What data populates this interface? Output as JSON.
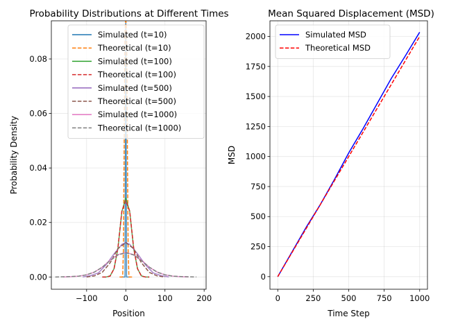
{
  "chart_data": [
    {
      "type": "line",
      "title": "Probability Distributions at Different Times",
      "xlabel": "Position",
      "ylabel": "Probability Density",
      "xlim": [
        -190,
        205
      ],
      "ylim": [
        -0.0045,
        0.094
      ],
      "xticks": [
        -100,
        0,
        100,
        200
      ],
      "xtick_labels": [
        "−100",
        "0",
        "100",
        "200"
      ],
      "yticks": [
        0.0,
        0.02,
        0.04,
        0.06,
        0.08
      ],
      "ytick_labels": [
        "0.00",
        "0.02",
        "0.04",
        "0.06",
        "0.08"
      ],
      "grid": true,
      "legend": "top-right",
      "series": [
        {
          "name": "Simulated (t=10)",
          "color": "#1f77b4",
          "style": "solid",
          "x": [
            -12,
            -8,
            -6,
            -4,
            -2,
            0,
            2,
            4,
            6,
            8,
            12
          ],
          "y": [
            0.0,
            0.0,
            0.0,
            0.0,
            0.0,
            0.095,
            0.0,
            0.0,
            0.0,
            0.0,
            0.0
          ]
        },
        {
          "name": "Theoretical (t=10)",
          "color": "#ff7f0e",
          "style": "dashed",
          "x": [
            -16,
            -12,
            -8,
            -6,
            -4,
            -2,
            0,
            2,
            4,
            6,
            8,
            12,
            16
          ],
          "y": [
            0.0,
            0.0,
            0.0,
            0.01,
            0.05,
            0.09,
            0.095,
            0.09,
            0.05,
            0.01,
            0.0,
            0.0,
            0.0
          ]
        },
        {
          "name": "Simulated (t=100)",
          "color": "#2ca02c",
          "style": "solid",
          "x": [
            -60,
            -50,
            -40,
            -30,
            -20,
            -10,
            0,
            10,
            20,
            30,
            40,
            50,
            60
          ],
          "y": [
            0.0,
            0.0,
            0.0004,
            0.003,
            0.0105,
            0.024,
            0.029,
            0.024,
            0.0105,
            0.003,
            0.0004,
            0.0,
            0.0
          ]
        },
        {
          "name": "Theoretical (t=100)",
          "color": "#d62728",
          "style": "dashed",
          "x": [
            -60,
            -50,
            -40,
            -30,
            -20,
            -10,
            0,
            10,
            20,
            30,
            40,
            50,
            60
          ],
          "y": [
            0.0,
            0.0,
            0.0003,
            0.003,
            0.0108,
            0.0242,
            0.028,
            0.0242,
            0.0108,
            0.003,
            0.0003,
            0.0,
            0.0
          ]
        },
        {
          "name": "Simulated (t=500)",
          "color": "#9467bd",
          "style": "solid",
          "x": [
            -110,
            -90,
            -70,
            -50,
            -30,
            -10,
            0,
            10,
            30,
            50,
            70,
            90,
            110
          ],
          "y": [
            0.0,
            0.0005,
            0.0015,
            0.0045,
            0.0085,
            0.012,
            0.0126,
            0.012,
            0.0085,
            0.0045,
            0.0015,
            0.0005,
            0.0
          ]
        },
        {
          "name": "Theoretical (t=500)",
          "color": "#8c564b",
          "style": "dashed",
          "x": [
            -100,
            -80,
            -60,
            -40,
            -20,
            0,
            20,
            40,
            60,
            80,
            100
          ],
          "y": [
            0.0,
            0.0004,
            0.0017,
            0.0052,
            0.0104,
            0.0126,
            0.0104,
            0.0052,
            0.0017,
            0.0004,
            0.0
          ]
        },
        {
          "name": "Simulated (t=1000)",
          "color": "#e377c2",
          "style": "solid",
          "x": [
            -160,
            -140,
            -120,
            -100,
            -80,
            -60,
            -40,
            -20,
            0,
            20,
            40,
            60,
            80,
            100,
            120,
            140,
            160
          ],
          "y": [
            0.0,
            0.0001,
            0.0003,
            0.0008,
            0.0018,
            0.0036,
            0.0062,
            0.0082,
            0.009,
            0.0082,
            0.0062,
            0.0036,
            0.0018,
            0.0008,
            0.0003,
            0.0001,
            0.0
          ]
        },
        {
          "name": "Theoretical (t=1000)",
          "color": "#7f7f7f",
          "style": "dashed",
          "x": [
            -180,
            -150,
            -120,
            -100,
            -80,
            -60,
            -40,
            -20,
            0,
            20,
            40,
            60,
            80,
            100,
            120,
            150,
            180
          ],
          "y": [
            0.0,
            0.0001,
            0.0003,
            0.0008,
            0.0018,
            0.0036,
            0.006,
            0.0081,
            0.0089,
            0.0081,
            0.006,
            0.0036,
            0.0018,
            0.0008,
            0.0003,
            0.0001,
            0.0
          ]
        }
      ]
    },
    {
      "type": "line",
      "title": "Mean Squared Displacement (MSD)",
      "xlabel": "Time Step",
      "ylabel": "MSD",
      "xlim": [
        -55,
        1055
      ],
      "ylim": [
        -105,
        2130
      ],
      "xticks": [
        0,
        250,
        500,
        750,
        1000
      ],
      "xtick_labels": [
        "0",
        "250",
        "500",
        "750",
        "1000"
      ],
      "yticks": [
        0,
        250,
        500,
        750,
        1000,
        1250,
        1500,
        1750,
        2000
      ],
      "ytick_labels": [
        "0",
        "250",
        "500",
        "750",
        "1000",
        "1250",
        "1500",
        "1750",
        "2000"
      ],
      "grid": true,
      "legend": "top-left",
      "series": [
        {
          "name": "Simulated MSD",
          "color": "#0000ff",
          "style": "solid",
          "x": [
            0,
            100,
            200,
            300,
            400,
            500,
            600,
            700,
            800,
            900,
            1000
          ],
          "y": [
            0,
            205,
            410,
            600,
            810,
            1030,
            1230,
            1440,
            1650,
            1840,
            2035
          ]
        },
        {
          "name": "Theoretical MSD",
          "color": "#ff0000",
          "style": "dashed",
          "x": [
            0,
            1000
          ],
          "y": [
            0,
            2000
          ]
        }
      ]
    }
  ]
}
